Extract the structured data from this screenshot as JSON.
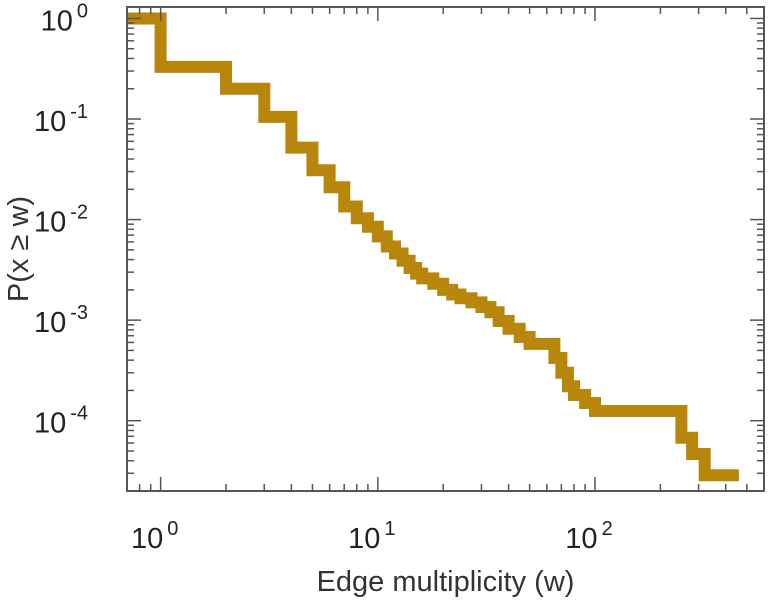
{
  "chart_data": {
    "type": "line",
    "style": "step",
    "xlabel": "Edge multiplicity (w)",
    "ylabel": "P(x ≥ w)",
    "x_scale": "log",
    "y_scale": "log",
    "xlim": [
      0.7,
      600
    ],
    "ylim": [
      2e-05,
      1.3
    ],
    "grid": false,
    "color": "#b8860b",
    "x_ticks": [
      {
        "base": "10",
        "exp": "0",
        "value": 1
      },
      {
        "base": "10",
        "exp": "1",
        "value": 10
      },
      {
        "base": "10",
        "exp": "2",
        "value": 100
      }
    ],
    "y_ticks": [
      {
        "base": "10",
        "exp": "0",
        "value": 1
      },
      {
        "base": "10",
        "exp": "-1",
        "value": 0.1
      },
      {
        "base": "10",
        "exp": "-2",
        "value": 0.01
      },
      {
        "base": "10",
        "exp": "-3",
        "value": 0.001
      },
      {
        "base": "10",
        "exp": "-4",
        "value": 0.0001
      }
    ],
    "series": [
      {
        "x": [
          0.7,
          1,
          2,
          3,
          4,
          5,
          6,
          7,
          8,
          9,
          10,
          11,
          12,
          13,
          14,
          15,
          16,
          18,
          20,
          22,
          24,
          27,
          30,
          33,
          36,
          40,
          45,
          50,
          55,
          65,
          70,
          75,
          80,
          90,
          100,
          140,
          250,
          280,
          320,
          460
        ],
        "y": [
          1.0,
          0.33,
          0.2,
          0.105,
          0.052,
          0.031,
          0.021,
          0.0135,
          0.0103,
          0.0085,
          0.0068,
          0.0054,
          0.0046,
          0.0039,
          0.0033,
          0.0029,
          0.0026,
          0.0023,
          0.002,
          0.0018,
          0.00165,
          0.0015,
          0.00135,
          0.0012,
          0.00098,
          0.00082,
          0.00068,
          0.00058,
          0.00058,
          0.00042,
          0.0003,
          0.00022,
          0.00018,
          0.00015,
          0.000125,
          0.000125,
          6.78e-05,
          4.67e-05,
          2.87e-05,
          2.87e-05
        ]
      }
    ]
  }
}
